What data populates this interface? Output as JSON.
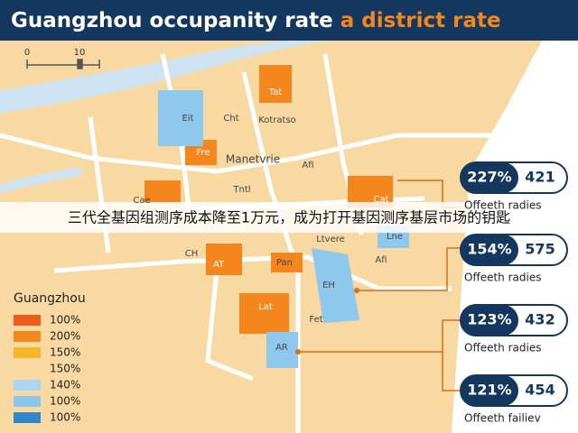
{
  "header": {
    "title_main": "Guangzhou occupanity rate",
    "title_accent": "a district rate"
  },
  "scale": {
    "start": "0",
    "end": "10"
  },
  "caption": "三代全基因组测序成本降至1万元，成为打开基因测序基层市场的钥匙",
  "legend": {
    "title": "Guangzhou",
    "items": [
      {
        "label": "100%",
        "color": "#f05a1a"
      },
      {
        "label": "200%",
        "color": "#f5861e"
      },
      {
        "label": "150%",
        "color": "#f7b52a"
      },
      {
        "label": "150%",
        "color": "#f9d9a0"
      },
      {
        "label": "140%",
        "color": "#a9d6f2"
      },
      {
        "label": "100%",
        "color": "#8cc6ec"
      },
      {
        "label": "100%",
        "color": "#2f86c8"
      }
    ]
  },
  "callouts": [
    {
      "percent": "227%",
      "value": "421",
      "label": "Offeeth radies"
    },
    {
      "percent": "154%",
      "value": "575",
      "label": "Offeeth radies"
    },
    {
      "percent": "123%",
      "value": "432",
      "label": "Offeeth radies"
    },
    {
      "percent": "121%",
      "value": "454",
      "label": "Offeeth failiev"
    }
  ],
  "map_labels": [
    "Tat",
    "Eit",
    "Cht",
    "Kotratso",
    "Fre",
    "Manetvrie",
    "Afi",
    "Tntl",
    "Cae",
    "Cat",
    "Lne",
    "Ltvere",
    "CH",
    "AT",
    "Pan",
    "Afi",
    "EH",
    "Fet",
    "Lat",
    "AR"
  ]
}
